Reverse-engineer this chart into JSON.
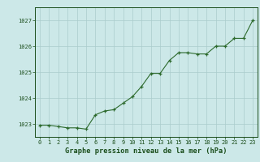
{
  "x": [
    0,
    1,
    2,
    3,
    4,
    5,
    6,
    7,
    8,
    9,
    10,
    11,
    12,
    13,
    14,
    15,
    16,
    17,
    18,
    19,
    20,
    21,
    22,
    23
  ],
  "y": [
    1022.95,
    1022.95,
    1022.9,
    1022.85,
    1022.85,
    1022.8,
    1023.35,
    1023.5,
    1023.55,
    1023.8,
    1024.05,
    1024.45,
    1024.95,
    1024.95,
    1025.45,
    1025.75,
    1025.75,
    1025.7,
    1025.7,
    1026.0,
    1026.0,
    1026.3,
    1026.3,
    1027.0
  ],
  "line_color": "#2d6a2d",
  "marker_color": "#2d6a2d",
  "bg_color": "#cce8e8",
  "grid_color": "#aacccc",
  "title": "Graphe pression niveau de la mer (hPa)",
  "title_color": "#1a4d1a",
  "ylim": [
    1022.5,
    1027.5
  ],
  "yticks": [
    1023,
    1024,
    1025,
    1026,
    1027
  ],
  "xlim": [
    -0.5,
    23.5
  ],
  "xticks": [
    0,
    1,
    2,
    3,
    4,
    5,
    6,
    7,
    8,
    9,
    10,
    11,
    12,
    13,
    14,
    15,
    16,
    17,
    18,
    19,
    20,
    21,
    22,
    23
  ],
  "tick_color": "#1a4d1a",
  "tick_fontsize": 5.0,
  "title_fontsize": 6.2
}
